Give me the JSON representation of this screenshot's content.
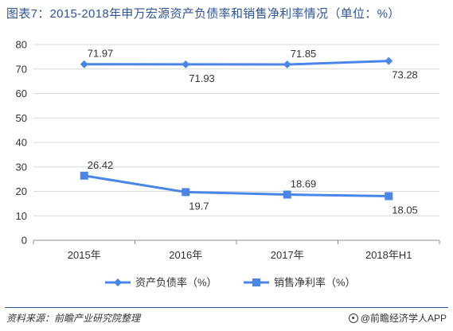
{
  "title": "图表7：2015-2018年申万宏源资产负债率和销售净利率情况（单位：%）",
  "source": "资料来源：前瞻产业研究院整理",
  "brand": "@前瞻经济学人APP",
  "colors": {
    "title": "#2f5597",
    "series": "#4a86e8",
    "axis": "#333333",
    "grid": "#d9d9d9"
  },
  "chart_data": {
    "type": "line",
    "categories": [
      "2015年",
      "2016年",
      "2017年",
      "2018年H1"
    ],
    "ylim": [
      0,
      80
    ],
    "yticks": [
      0,
      10,
      20,
      30,
      40,
      50,
      60,
      70,
      80
    ],
    "grid": true,
    "legend_position": "bottom",
    "series": [
      {
        "name": "资产负债率（%）",
        "marker": "diamond",
        "values": [
          71.97,
          71.93,
          71.85,
          73.28
        ],
        "labels": [
          "71.97",
          "71.93",
          "71.85",
          "73.28"
        ],
        "label_side": [
          "above",
          "below",
          "above",
          "below"
        ]
      },
      {
        "name": "销售净利率（%）",
        "marker": "square",
        "values": [
          26.42,
          19.7,
          18.69,
          18.05
        ],
        "labels": [
          "26.42",
          "19.7",
          "18.69",
          "18.05"
        ],
        "label_side": [
          "above",
          "below",
          "above",
          "below"
        ]
      }
    ]
  }
}
